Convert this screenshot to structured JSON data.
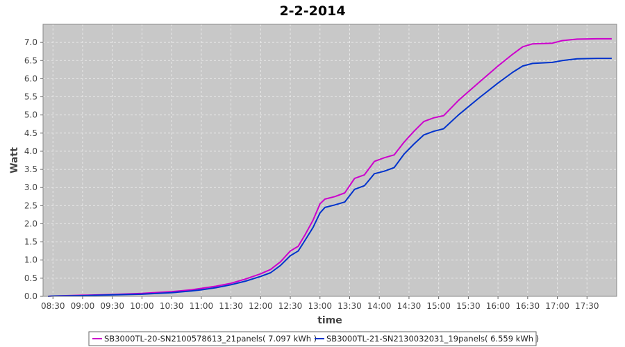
{
  "colors": {
    "plot_background": "#c8c8c8",
    "grid": "#e8e8e8",
    "series_1": "#cc00cc",
    "series_2": "#0033cc"
  },
  "chart_data": {
    "type": "line",
    "title": "2-2-2014",
    "xlabel": "time",
    "ylabel": "Watt",
    "xlim": [
      "08:20",
      "18:00"
    ],
    "ylim": [
      0,
      7.5
    ],
    "x_ticks": [
      "08:30",
      "09:00",
      "09:30",
      "10:00",
      "10:30",
      "11:00",
      "11:30",
      "12:00",
      "12:30",
      "13:00",
      "13:30",
      "14:00",
      "14:30",
      "15:00",
      "15:30",
      "16:00",
      "16:30",
      "17:00",
      "17:30"
    ],
    "y_ticks": [
      "0.0",
      "0.5",
      "1.0",
      "1.5",
      "2.0",
      "2.5",
      "3.0",
      "3.5",
      "4.0",
      "4.5",
      "5.0",
      "5.5",
      "6.0",
      "6.5",
      "7.0"
    ],
    "grid": true,
    "legend_position": "bottom",
    "series": [
      {
        "name": "SB3000TL-20-SN2100578613_21panels( 7.097 kWh )",
        "color": "#cc00cc",
        "points": [
          [
            "08:25",
            0.0
          ],
          [
            "08:30",
            0.01
          ],
          [
            "09:00",
            0.03
          ],
          [
            "09:30",
            0.05
          ],
          [
            "10:00",
            0.08
          ],
          [
            "10:30",
            0.13
          ],
          [
            "10:50",
            0.18
          ],
          [
            "11:00",
            0.22
          ],
          [
            "11:15",
            0.28
          ],
          [
            "11:30",
            0.36
          ],
          [
            "11:45",
            0.48
          ],
          [
            "12:00",
            0.62
          ],
          [
            "12:10",
            0.74
          ],
          [
            "12:20",
            0.95
          ],
          [
            "12:30",
            1.25
          ],
          [
            "12:38",
            1.38
          ],
          [
            "12:45",
            1.7
          ],
          [
            "12:53",
            2.1
          ],
          [
            "13:00",
            2.55
          ],
          [
            "13:05",
            2.68
          ],
          [
            "13:15",
            2.75
          ],
          [
            "13:25",
            2.85
          ],
          [
            "13:35",
            3.25
          ],
          [
            "13:45",
            3.35
          ],
          [
            "13:55",
            3.72
          ],
          [
            "14:05",
            3.82
          ],
          [
            "14:15",
            3.9
          ],
          [
            "14:25",
            4.25
          ],
          [
            "14:35",
            4.55
          ],
          [
            "14:45",
            4.82
          ],
          [
            "14:55",
            4.92
          ],
          [
            "15:05",
            4.98
          ],
          [
            "15:20",
            5.4
          ],
          [
            "15:40",
            5.88
          ],
          [
            "16:00",
            6.35
          ],
          [
            "16:15",
            6.68
          ],
          [
            "16:25",
            6.88
          ],
          [
            "16:35",
            6.96
          ],
          [
            "16:55",
            6.98
          ],
          [
            "17:05",
            7.05
          ],
          [
            "17:20",
            7.09
          ],
          [
            "17:40",
            7.1
          ],
          [
            "17:55",
            7.1
          ]
        ]
      },
      {
        "name": "SB3000TL-21-SN2130032031_19panels( 6.559 kWh )",
        "color": "#0033cc",
        "points": [
          [
            "08:25",
            0.0
          ],
          [
            "08:30",
            0.01
          ],
          [
            "09:00",
            0.02
          ],
          [
            "09:30",
            0.04
          ],
          [
            "10:00",
            0.06
          ],
          [
            "10:30",
            0.1
          ],
          [
            "10:50",
            0.15
          ],
          [
            "11:00",
            0.18
          ],
          [
            "11:15",
            0.24
          ],
          [
            "11:30",
            0.32
          ],
          [
            "11:45",
            0.42
          ],
          [
            "12:00",
            0.55
          ],
          [
            "12:10",
            0.65
          ],
          [
            "12:20",
            0.85
          ],
          [
            "12:30",
            1.12
          ],
          [
            "12:38",
            1.25
          ],
          [
            "12:45",
            1.55
          ],
          [
            "12:53",
            1.9
          ],
          [
            "13:00",
            2.3
          ],
          [
            "13:05",
            2.45
          ],
          [
            "13:15",
            2.52
          ],
          [
            "13:25",
            2.6
          ],
          [
            "13:35",
            2.95
          ],
          [
            "13:45",
            3.05
          ],
          [
            "13:55",
            3.38
          ],
          [
            "14:05",
            3.45
          ],
          [
            "14:15",
            3.55
          ],
          [
            "14:25",
            3.92
          ],
          [
            "14:35",
            4.2
          ],
          [
            "14:45",
            4.45
          ],
          [
            "14:55",
            4.55
          ],
          [
            "15:05",
            4.62
          ],
          [
            "15:20",
            5.0
          ],
          [
            "15:40",
            5.45
          ],
          [
            "16:00",
            5.88
          ],
          [
            "16:15",
            6.18
          ],
          [
            "16:25",
            6.35
          ],
          [
            "16:35",
            6.42
          ],
          [
            "16:55",
            6.45
          ],
          [
            "17:05",
            6.5
          ],
          [
            "17:20",
            6.55
          ],
          [
            "17:40",
            6.56
          ],
          [
            "17:55",
            6.56
          ]
        ]
      }
    ]
  }
}
